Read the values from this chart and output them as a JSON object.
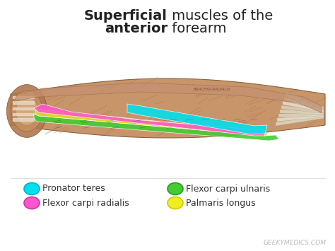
{
  "background_color": "#ffffff",
  "title_fontsize": 14,
  "legend_fontsize": 9,
  "watermark_fontsize": 6.5,
  "title_color": "#222222",
  "watermark_color": "#bbbbbb",
  "watermark": "GEEKYMEDICS.COM",
  "legend_items": [
    {
      "label": "Pronator teres",
      "color": "#00e0ee",
      "outline": "#00b0cc"
    },
    {
      "label": "Flexor carpi ulnaris",
      "color": "#44cc33",
      "outline": "#339922"
    },
    {
      "label": "Flexor carpi radialis",
      "color": "#ff55cc",
      "outline": "#cc33aa"
    },
    {
      "label": "Palmaris longus",
      "color": "#eeee22",
      "outline": "#cccc00"
    }
  ],
  "forearm": {
    "bg_color": "#c8956a",
    "dark_color": "#9a6840",
    "light_color": "#e0b888",
    "tendon_color": "#e8dcc8",
    "green_color": "#44cc33",
    "yellow_color": "#dddd22",
    "pink_color": "#ff55cc",
    "cyan_color": "#00e0ee"
  }
}
